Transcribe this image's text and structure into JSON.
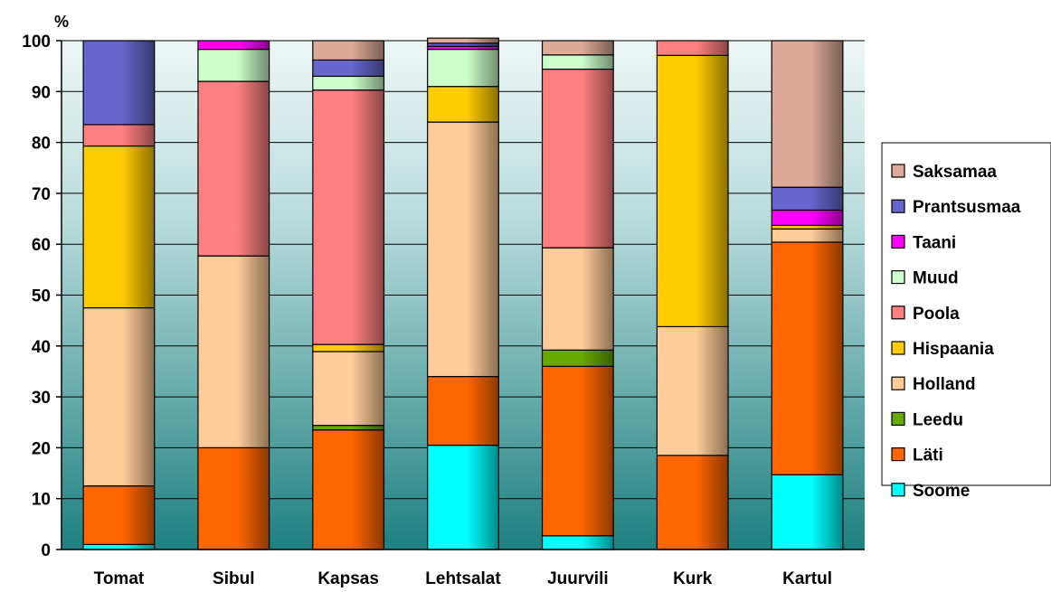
{
  "chart_data": {
    "type": "bar",
    "stacked": true,
    "ylabel": "%",
    "ylim": [
      0,
      100
    ],
    "yticks": [
      0,
      10,
      20,
      30,
      40,
      50,
      60,
      70,
      80,
      90,
      100
    ],
    "grid": true,
    "legend_position": "right",
    "categories": [
      "Tomat",
      "Sibul",
      "Kapsas",
      "Lehtsalat",
      "Juurvili",
      "Kurk",
      "Kartul"
    ],
    "series": [
      {
        "name": "Soome",
        "color": "#00ffff",
        "values": [
          1.0,
          0,
          0,
          20.5,
          2.7,
          0,
          14.7
        ]
      },
      {
        "name": "Läti",
        "color": "#ff6600",
        "values": [
          11.5,
          20.0,
          23.5,
          13.5,
          33.3,
          18.5,
          45.7
        ]
      },
      {
        "name": "Leedu",
        "color": "#66aa00",
        "values": [
          0,
          0,
          0.9,
          0,
          3.2,
          0,
          0
        ]
      },
      {
        "name": "Holland",
        "color": "#ffcc99",
        "values": [
          35.0,
          37.7,
          14.5,
          50.0,
          20.1,
          25.3,
          2.6
        ]
      },
      {
        "name": "Hispaania",
        "color": "#ffcc00",
        "values": [
          31.8,
          0,
          1.4,
          7.0,
          0,
          53.3,
          0.7
        ]
      },
      {
        "name": "Poola",
        "color": "#ff8080",
        "values": [
          4.2,
          34.3,
          50.0,
          0,
          35.1,
          2.9,
          0
        ]
      },
      {
        "name": "Muud",
        "color": "#ccffcc",
        "values": [
          0,
          6.3,
          2.7,
          7.3,
          2.8,
          0,
          0
        ]
      },
      {
        "name": "Taani",
        "color": "#ff00ff",
        "values": [
          0,
          1.7,
          0,
          0.6,
          0,
          0,
          3.0
        ]
      },
      {
        "name": "Prantsusmaa",
        "color": "#6666cc",
        "values": [
          16.5,
          0,
          3.2,
          0.6,
          0,
          0,
          4.5
        ]
      },
      {
        "name": "Saksamaa",
        "color": "#ddaa99",
        "values": [
          0,
          0,
          3.8,
          1.0,
          2.8,
          0,
          28.8
        ]
      }
    ]
  }
}
